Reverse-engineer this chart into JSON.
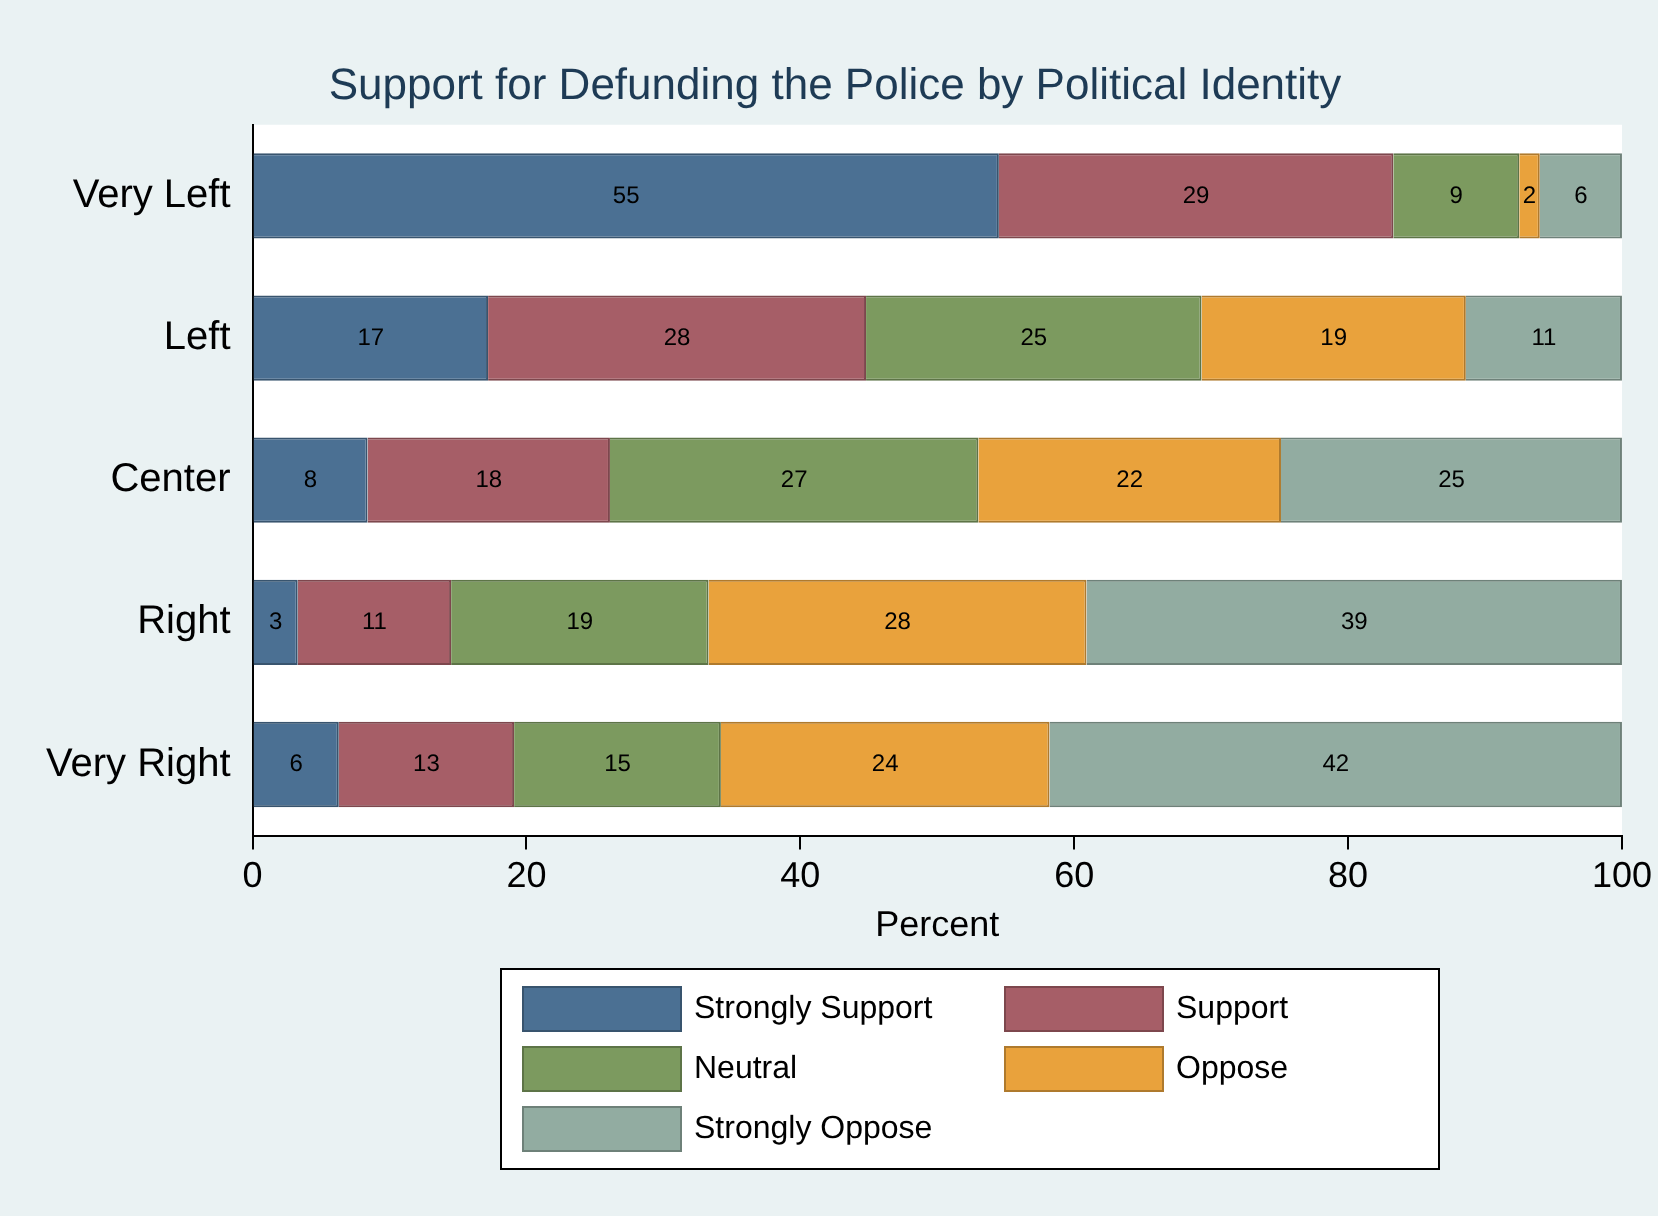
{
  "chart_data": {
    "type": "bar",
    "orientation": "horizontal",
    "stacked": true,
    "title": "Support for Defunding the Police by Political Identity",
    "xlabel": "Percent",
    "categories": [
      "Very Left",
      "Left",
      "Center",
      "Right",
      "Very Right"
    ],
    "xlim": [
      0,
      100
    ],
    "xticks": [
      0,
      20,
      40,
      60,
      80,
      100
    ],
    "legend": "bottom",
    "series": [
      {
        "name": "Strongly Support",
        "color": "#4b7093",
        "values": [
          54.5,
          17.2,
          8.4,
          3.3,
          6.3
        ],
        "value_labels": [
          "55",
          "17",
          "8",
          "3",
          "6"
        ]
      },
      {
        "name": "Support",
        "color": "#a65e67",
        "values": [
          28.8,
          27.6,
          17.7,
          11.2,
          12.8
        ],
        "value_labels": [
          "29",
          "28",
          "18",
          "11",
          "13"
        ]
      },
      {
        "name": "Neutral",
        "color": "#7c9a5f",
        "values": [
          9.2,
          24.5,
          26.9,
          18.8,
          15.1
        ],
        "value_labels": [
          "9",
          "25",
          "27",
          "19",
          "15"
        ]
      },
      {
        "name": "Oppose",
        "color": "#e9a23c",
        "values": [
          1.5,
          19.3,
          22.1,
          27.6,
          24
        ],
        "value_labels": [
          "2",
          "19",
          "22",
          "28",
          "24"
        ]
      },
      {
        "name": "Strongly Oppose",
        "color": "#92aca1",
        "values": [
          6,
          11.4,
          24.9,
          39.1,
          41.8
        ],
        "value_labels": [
          "6",
          "11",
          "25",
          "39",
          "42"
        ]
      }
    ]
  }
}
